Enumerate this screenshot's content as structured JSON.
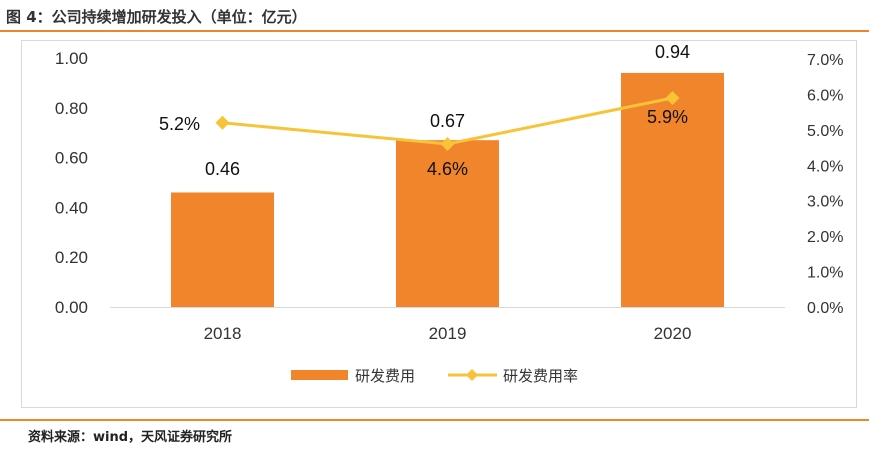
{
  "figure": {
    "title": "图 4：公司持续增加研发投入（单位：亿元）",
    "source": "资料来源：wind，天风证券研究所"
  },
  "colors": {
    "bar": "#f0852b",
    "line": "#f7c338",
    "accent": "#f0852b",
    "text": "#333333",
    "axis": "#d9d9d9"
  },
  "chart_data": {
    "type": "bar+line",
    "categories": [
      "2018",
      "2019",
      "2020"
    ],
    "series": [
      {
        "name": "研发费用",
        "type": "bar",
        "axis": "left",
        "values": [
          0.46,
          0.67,
          0.94
        ],
        "labels": [
          "0.46",
          "0.67",
          "0.94"
        ]
      },
      {
        "name": "研发费用率",
        "type": "line",
        "axis": "right",
        "values": [
          5.2,
          4.6,
          5.9
        ],
        "labels": [
          "5.2%",
          "4.6%",
          "5.9%"
        ]
      }
    ],
    "y_left": {
      "min": 0,
      "max": 1.0,
      "ticks": [
        "0.00",
        "0.20",
        "0.40",
        "0.60",
        "0.80",
        "1.00"
      ]
    },
    "y_right": {
      "min": 0,
      "max": 7.0,
      "ticks": [
        "0.0%",
        "1.0%",
        "2.0%",
        "3.0%",
        "4.0%",
        "5.0%",
        "6.0%",
        "7.0%"
      ]
    },
    "legend": {
      "position": "bottom",
      "entries": [
        "研发费用",
        "研发费用率"
      ]
    },
    "grid": false
  }
}
